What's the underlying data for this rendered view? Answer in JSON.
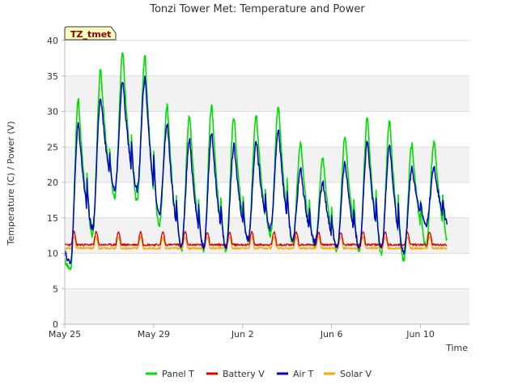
{
  "chart_data": {
    "type": "line",
    "title": "Tonzi Tower Met: Temperature and Power",
    "xlabel": "Time",
    "ylabel": "Temperature (C) / Power (V)",
    "tag": "TZ_tmet",
    "ylim": [
      0,
      40
    ],
    "yticks": [
      0,
      5,
      10,
      15,
      20,
      25,
      30,
      35,
      40
    ],
    "xlim": [
      0,
      18.2
    ],
    "xticks": [
      {
        "value": 0,
        "label": "May 25"
      },
      {
        "value": 4,
        "label": "May 29"
      },
      {
        "value": 8,
        "label": "Jun 2"
      },
      {
        "value": 12,
        "label": "Jun 6"
      },
      {
        "value": 16,
        "label": "Jun 10"
      }
    ],
    "x_units": "days since May 25",
    "grid": "horizontal bands",
    "legend_position": "bottom",
    "series": [
      {
        "name": "Panel T",
        "color": "#00dd00",
        "daily_min": [
          7.5,
          12.5,
          18.0,
          17.5,
          14.0,
          10.5,
          10.5,
          10.5,
          11.5,
          12.5,
          11.5,
          11.0,
          10.5,
          10.5,
          10.0,
          9.0,
          11.0,
          11.5,
          12.0
        ],
        "daily_max": [
          31.8,
          36.0,
          38.5,
          37.9,
          30.8,
          29.6,
          31.0,
          29.3,
          29.6,
          31.0,
          25.5,
          23.4,
          26.6,
          29.2,
          28.8,
          25.5,
          26.0
        ]
      },
      {
        "name": "Battery V",
        "color": "#dd0000",
        "baseline": 11.2,
        "daily_peak": 13.0
      },
      {
        "name": "Air T",
        "color": "#0000cc",
        "daily_min": [
          8.5,
          13.5,
          19.0,
          19.0,
          15.5,
          11.0,
          11.0,
          11.0,
          12.0,
          13.5,
          12.0,
          11.5,
          11.0,
          11.0,
          11.0,
          10.0,
          14.0,
          14.0,
          12.5
        ],
        "daily_max": [
          28.3,
          32.2,
          34.3,
          34.9,
          28.3,
          26.0,
          27.1,
          25.2,
          25.8,
          27.5,
          21.8,
          19.9,
          22.8,
          25.7,
          25.3,
          22.0,
          22.0
        ]
      },
      {
        "name": "Solar V",
        "color": "#ffa500",
        "baseline": 10.7,
        "daily_peak": 12.3
      }
    ]
  }
}
